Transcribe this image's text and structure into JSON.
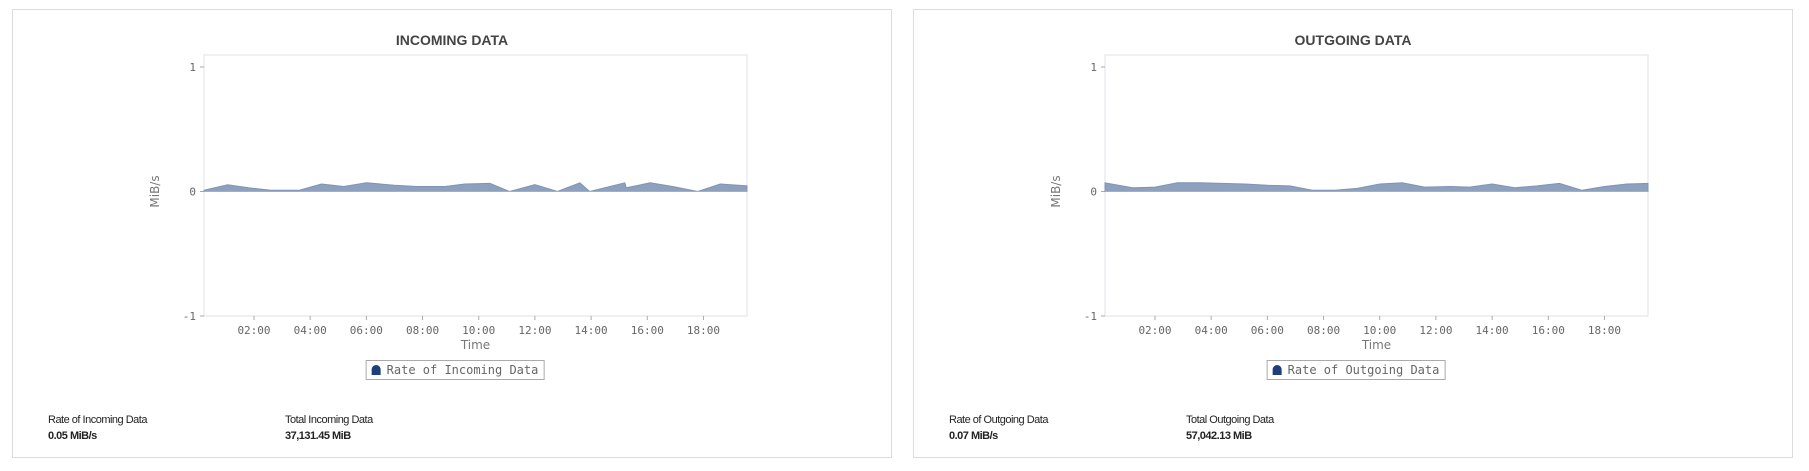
{
  "colors": {
    "fill": "#8da0bd",
    "stroke": "#7f94b5",
    "legend_marker": "#1f3f7a"
  },
  "chart_data": [
    {
      "type": "area",
      "title": "INCOMING DATA",
      "xlabel": "Time",
      "ylabel": "MiB/s",
      "ylim": [
        -1,
        1
      ],
      "yticks": [
        "1",
        "0",
        "-1"
      ],
      "xticks": [
        "02:00",
        "04:00",
        "06:00",
        "08:00",
        "10:00",
        "12:00",
        "14:00",
        "16:00",
        "18:00"
      ],
      "xlim_hours": [
        0.22,
        19.55
      ],
      "legend": "bottom",
      "series": [
        {
          "name": "Rate of Incoming Data",
          "x": [
            0.22,
            1.06,
            1.8,
            2.6,
            3.6,
            4.4,
            5.2,
            6.0,
            7.0,
            7.8,
            8.8,
            9.5,
            10.4,
            11.1,
            12.0,
            12.8,
            13.6,
            13.95,
            15.2,
            15.25,
            16.1,
            16.9,
            17.8,
            18.6,
            19.55
          ],
          "values": [
            0.01,
            0.055,
            0.03,
            0.01,
            0.01,
            0.06,
            0.04,
            0.07,
            0.05,
            0.04,
            0.04,
            0.06,
            0.065,
            0.0,
            0.055,
            0.0,
            0.07,
            0.0,
            0.07,
            0.03,
            0.07,
            0.04,
            0.0,
            0.06,
            0.045
          ]
        }
      ],
      "stats": [
        {
          "label": "Rate of Incoming Data",
          "value": "0.05 MiB/s"
        },
        {
          "label": "Total Incoming Data",
          "value": "37,131.45 MiB"
        }
      ]
    },
    {
      "type": "area",
      "title": "OUTGOING DATA",
      "xlabel": "Time",
      "ylabel": "MiB/s",
      "ylim": [
        -1,
        1
      ],
      "yticks": [
        "1",
        "0",
        "-1"
      ],
      "xticks": [
        "02:00",
        "04:00",
        "06:00",
        "08:00",
        "10:00",
        "12:00",
        "14:00",
        "16:00",
        "18:00"
      ],
      "xlim_hours": [
        0.22,
        19.55
      ],
      "legend": "bottom",
      "series": [
        {
          "name": "Rate of Outgoing Data",
          "x": [
            0.22,
            1.2,
            2.0,
            2.8,
            3.6,
            5.2,
            6.0,
            6.8,
            7.6,
            8.4,
            9.2,
            10.0,
            10.8,
            11.6,
            12.5,
            13.2,
            14.0,
            14.8,
            15.6,
            16.4,
            17.2,
            18.0,
            18.8,
            19.55
          ],
          "values": [
            0.07,
            0.03,
            0.035,
            0.07,
            0.07,
            0.06,
            0.05,
            0.045,
            0.01,
            0.01,
            0.025,
            0.06,
            0.07,
            0.035,
            0.04,
            0.035,
            0.06,
            0.03,
            0.045,
            0.065,
            0.01,
            0.04,
            0.06,
            0.065
          ]
        }
      ],
      "stats": [
        {
          "label": "Rate of Outgoing Data",
          "value": "0.07 MiB/s"
        },
        {
          "label": "Total Outgoing Data",
          "value": "57,042.13 MiB"
        }
      ]
    }
  ]
}
